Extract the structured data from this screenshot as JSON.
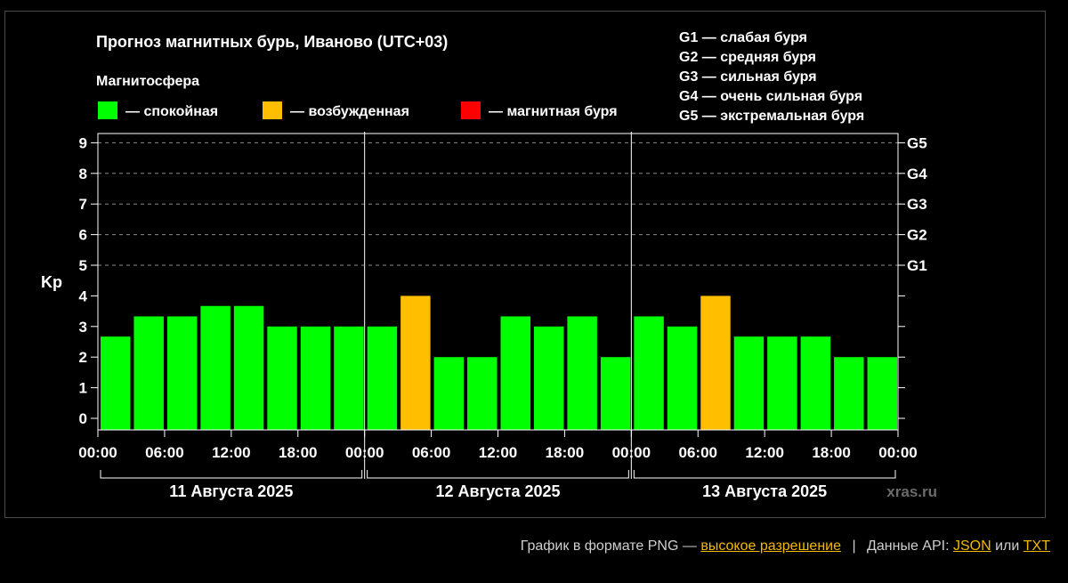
{
  "chart_data": {
    "type": "bar",
    "title": "Прогноз магнитных бурь, Иваново (UTC+03)",
    "legend_title": "Магнитосфера",
    "legend": [
      {
        "label": "— спокойная",
        "color": "#00ff00"
      },
      {
        "label": "— возбужденная",
        "color": "#ffbf00"
      },
      {
        "label": "— магнитная буря",
        "color": "#ff0000"
      }
    ],
    "g_legend": [
      "G1 — слабая буря",
      "G2 — средняя буря",
      "G3 — сильная буря",
      "G4 — очень сильная буря",
      "G5 — экстремальная буря"
    ],
    "ylabel": "Kp",
    "ylim": [
      0,
      9
    ],
    "y_ticks": [
      "0",
      "1",
      "2",
      "3",
      "4",
      "5",
      "6",
      "7",
      "8",
      "9"
    ],
    "g_levels": [
      {
        "label": "G1",
        "kp": 5
      },
      {
        "label": "G2",
        "kp": 6
      },
      {
        "label": "G3",
        "kp": 7
      },
      {
        "label": "G4",
        "kp": 8
      },
      {
        "label": "G5",
        "kp": 9
      }
    ],
    "x_ticks": [
      "00:00",
      "06:00",
      "12:00",
      "18:00",
      "00:00",
      "06:00",
      "12:00",
      "18:00",
      "00:00",
      "06:00",
      "12:00",
      "18:00",
      "00:00"
    ],
    "days": [
      "11 Августа 2025",
      "12 Августа 2025",
      "13 Августа 2025"
    ],
    "values": [
      2.67,
      3.33,
      3.33,
      3.67,
      3.67,
      3.0,
      3.0,
      3.0,
      3.0,
      4.0,
      2.0,
      2.0,
      3.33,
      3.0,
      3.33,
      2.0,
      3.33,
      3.0,
      4.0,
      2.67,
      2.67,
      2.67,
      2.0,
      2.0
    ],
    "status": [
      "quiet",
      "quiet",
      "quiet",
      "quiet",
      "quiet",
      "quiet",
      "quiet",
      "quiet",
      "quiet",
      "active",
      "quiet",
      "quiet",
      "quiet",
      "quiet",
      "quiet",
      "quiet",
      "quiet",
      "quiet",
      "active",
      "quiet",
      "quiet",
      "quiet",
      "quiet",
      "quiet"
    ],
    "status_colors": {
      "quiet": "#00ff00",
      "active": "#ffbf00",
      "storm": "#ff0000"
    },
    "grid": "dashed-upper",
    "watermark": "xras.ru"
  },
  "footer": {
    "prefix": "График в формате PNG —",
    "hires_link": "высокое разрешение",
    "separator": "|",
    "api_label": "Данные API:",
    "json_link": "JSON",
    "or": "или",
    "txt_link": "TXT"
  }
}
